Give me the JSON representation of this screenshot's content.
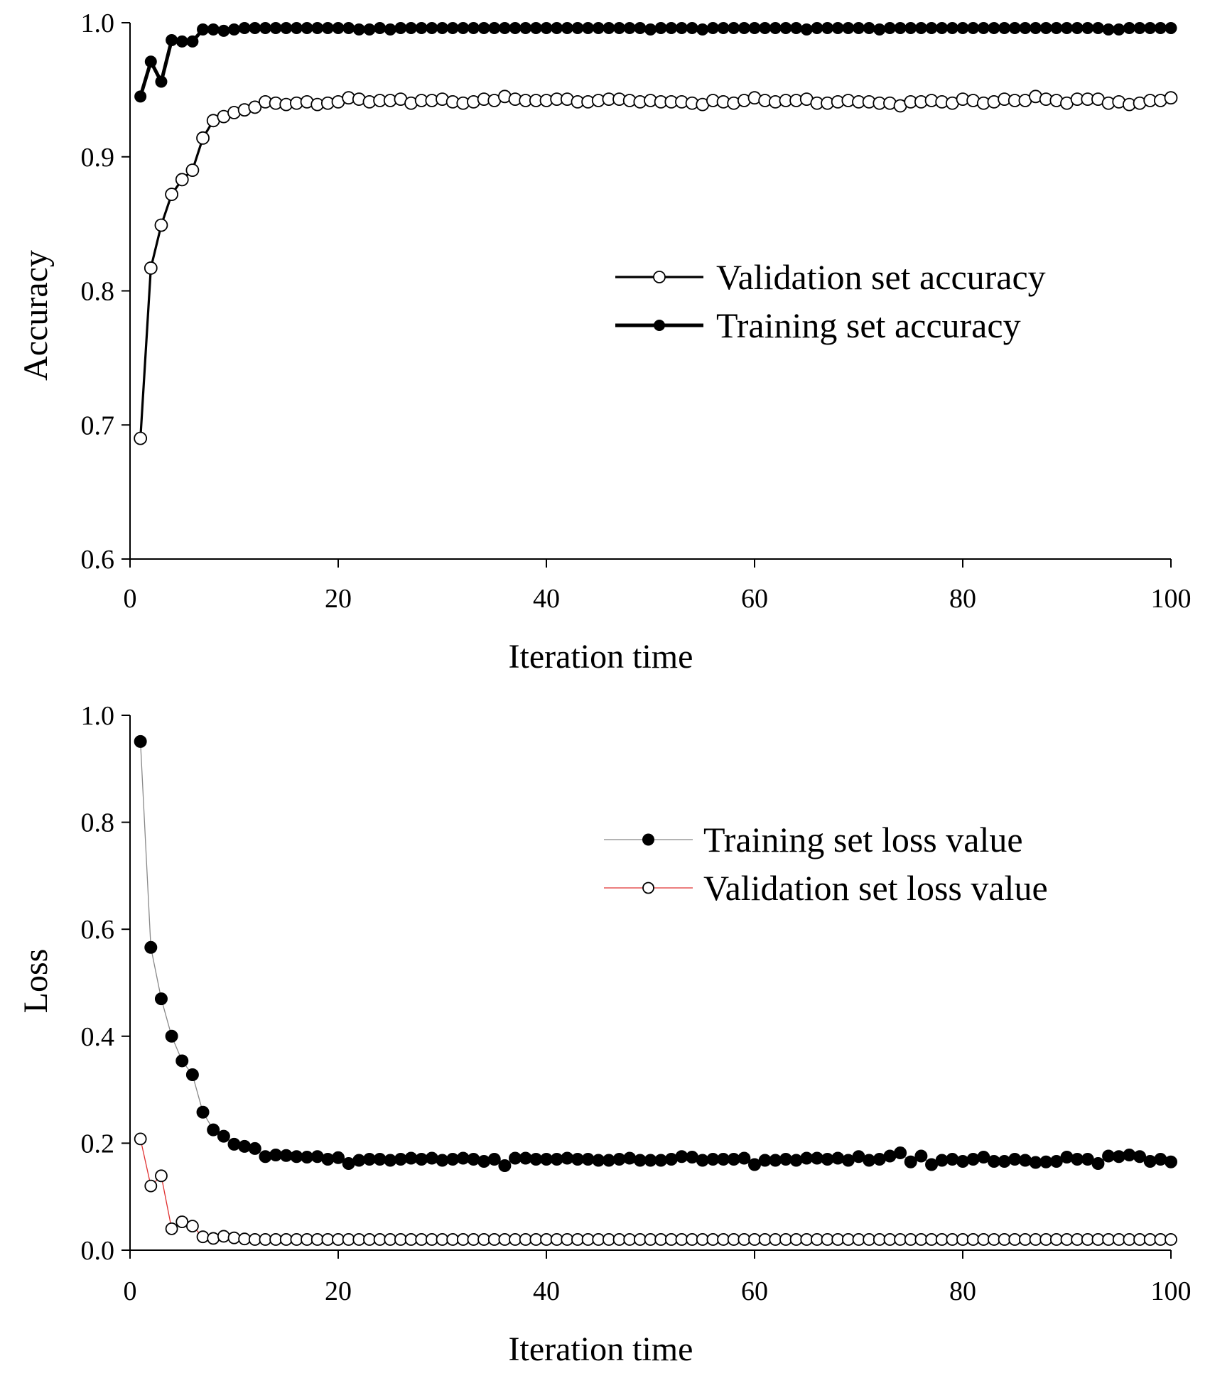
{
  "chart_data": [
    {
      "type": "line",
      "xlabel": "Iteration time",
      "ylabel": "Accuracy",
      "xlim": [
        0,
        100
      ],
      "ylim": [
        0.6,
        1.0
      ],
      "xticks": [
        "0",
        "20",
        "40",
        "60",
        "80",
        "100"
      ],
      "yticks": [
        "0.6",
        "0.7",
        "0.8",
        "0.9",
        "1.0"
      ],
      "legend_position": "center-right",
      "series": [
        {
          "name": "Validation set accuracy",
          "marker": "open-circle",
          "line_color": "#000000",
          "marker_color": "#ffffff",
          "x": [
            1,
            2,
            3,
            4,
            5,
            6,
            7,
            8,
            9,
            10,
            11,
            12,
            13,
            14,
            15,
            16,
            17,
            18,
            19,
            20,
            21,
            22,
            23,
            24,
            25,
            26,
            27,
            28,
            29,
            30,
            31,
            32,
            33,
            34,
            35,
            36,
            37,
            38,
            39,
            40,
            41,
            42,
            43,
            44,
            45,
            46,
            47,
            48,
            49,
            50,
            51,
            52,
            53,
            54,
            55,
            56,
            57,
            58,
            59,
            60,
            61,
            62,
            63,
            64,
            65,
            66,
            67,
            68,
            69,
            70,
            71,
            72,
            73,
            74,
            75,
            76,
            77,
            78,
            79,
            80,
            81,
            82,
            83,
            84,
            85,
            86,
            87,
            88,
            89,
            90,
            91,
            92,
            93,
            94,
            95,
            96,
            97,
            98,
            99,
            100
          ],
          "values": [
            0.69,
            0.817,
            0.849,
            0.872,
            0.883,
            0.89,
            0.914,
            0.927,
            0.93,
            0.933,
            0.935,
            0.937,
            0.941,
            0.94,
            0.939,
            0.94,
            0.941,
            0.939,
            0.94,
            0.941,
            0.944,
            0.943,
            0.941,
            0.942,
            0.942,
            0.943,
            0.94,
            0.942,
            0.942,
            0.943,
            0.941,
            0.94,
            0.941,
            0.943,
            0.942,
            0.945,
            0.943,
            0.942,
            0.942,
            0.942,
            0.943,
            0.943,
            0.941,
            0.941,
            0.942,
            0.943,
            0.943,
            0.942,
            0.941,
            0.942,
            0.941,
            0.941,
            0.941,
            0.94,
            0.939,
            0.942,
            0.941,
            0.94,
            0.942,
            0.944,
            0.942,
            0.941,
            0.942,
            0.942,
            0.943,
            0.94,
            0.94,
            0.941,
            0.942,
            0.941,
            0.941,
            0.94,
            0.94,
            0.938,
            0.941,
            0.941,
            0.942,
            0.941,
            0.94,
            0.943,
            0.942,
            0.94,
            0.941,
            0.943,
            0.942,
            0.942,
            0.945,
            0.943,
            0.942,
            0.94,
            0.943,
            0.943,
            0.943,
            0.94,
            0.941,
            0.939,
            0.94,
            0.942,
            0.942,
            0.944
          ]
        },
        {
          "name": "Training set accuracy",
          "marker": "filled-circle",
          "line_color": "#000000",
          "marker_color": "#000000",
          "x": [
            1,
            2,
            3,
            4,
            5,
            6,
            7,
            8,
            9,
            10,
            11,
            12,
            13,
            14,
            15,
            16,
            17,
            18,
            19,
            20,
            21,
            22,
            23,
            24,
            25,
            26,
            27,
            28,
            29,
            30,
            31,
            32,
            33,
            34,
            35,
            36,
            37,
            38,
            39,
            40,
            41,
            42,
            43,
            44,
            45,
            46,
            47,
            48,
            49,
            50,
            51,
            52,
            53,
            54,
            55,
            56,
            57,
            58,
            59,
            60,
            61,
            62,
            63,
            64,
            65,
            66,
            67,
            68,
            69,
            70,
            71,
            72,
            73,
            74,
            75,
            76,
            77,
            78,
            79,
            80,
            81,
            82,
            83,
            84,
            85,
            86,
            87,
            88,
            89,
            90,
            91,
            92,
            93,
            94,
            95,
            96,
            97,
            98,
            99,
            100
          ],
          "values": [
            0.945,
            0.971,
            0.956,
            0.987,
            0.986,
            0.986,
            0.995,
            0.995,
            0.994,
            0.995,
            0.996,
            0.996,
            0.996,
            0.996,
            0.996,
            0.996,
            0.996,
            0.996,
            0.996,
            0.996,
            0.996,
            0.995,
            0.995,
            0.996,
            0.995,
            0.996,
            0.996,
            0.996,
            0.996,
            0.996,
            0.996,
            0.996,
            0.996,
            0.996,
            0.996,
            0.996,
            0.996,
            0.996,
            0.996,
            0.996,
            0.996,
            0.996,
            0.996,
            0.996,
            0.996,
            0.996,
            0.996,
            0.996,
            0.996,
            0.995,
            0.996,
            0.996,
            0.996,
            0.996,
            0.995,
            0.996,
            0.996,
            0.996,
            0.996,
            0.996,
            0.996,
            0.996,
            0.996,
            0.996,
            0.995,
            0.996,
            0.996,
            0.996,
            0.996,
            0.996,
            0.996,
            0.995,
            0.996,
            0.996,
            0.996,
            0.996,
            0.996,
            0.996,
            0.996,
            0.996,
            0.996,
            0.996,
            0.996,
            0.996,
            0.996,
            0.996,
            0.996,
            0.996,
            0.996,
            0.996,
            0.996,
            0.996,
            0.996,
            0.995,
            0.995,
            0.996,
            0.996,
            0.996,
            0.996,
            0.996
          ]
        }
      ]
    },
    {
      "type": "line",
      "xlabel": "Iteration time",
      "ylabel": "Loss",
      "xlim": [
        0,
        100
      ],
      "ylim": [
        0.0,
        1.0
      ],
      "xticks": [
        "0",
        "20",
        "40",
        "60",
        "80",
        "100"
      ],
      "yticks": [
        "0.0",
        "0.2",
        "0.4",
        "0.6",
        "0.8",
        "1.0"
      ],
      "legend_position": "top-right",
      "series": [
        {
          "name": "Training set loss value",
          "marker": "filled-circle",
          "line_color": "#888888",
          "marker_color": "#000000",
          "x": [
            1,
            2,
            3,
            4,
            5,
            6,
            7,
            8,
            9,
            10,
            11,
            12,
            13,
            14,
            15,
            16,
            17,
            18,
            19,
            20,
            21,
            22,
            23,
            24,
            25,
            26,
            27,
            28,
            29,
            30,
            31,
            32,
            33,
            34,
            35,
            36,
            37,
            38,
            39,
            40,
            41,
            42,
            43,
            44,
            45,
            46,
            47,
            48,
            49,
            50,
            51,
            52,
            53,
            54,
            55,
            56,
            57,
            58,
            59,
            60,
            61,
            62,
            63,
            64,
            65,
            66,
            67,
            68,
            69,
            70,
            71,
            72,
            73,
            74,
            75,
            76,
            77,
            78,
            79,
            80,
            81,
            82,
            83,
            84,
            85,
            86,
            87,
            88,
            89,
            90,
            91,
            92,
            93,
            94,
            95,
            96,
            97,
            98,
            99,
            100
          ],
          "values": [
            0.951,
            0.566,
            0.47,
            0.4,
            0.354,
            0.328,
            0.258,
            0.225,
            0.213,
            0.198,
            0.194,
            0.19,
            0.175,
            0.178,
            0.177,
            0.175,
            0.174,
            0.175,
            0.17,
            0.173,
            0.162,
            0.168,
            0.17,
            0.17,
            0.168,
            0.17,
            0.172,
            0.17,
            0.172,
            0.168,
            0.17,
            0.172,
            0.17,
            0.166,
            0.17,
            0.158,
            0.172,
            0.172,
            0.17,
            0.17,
            0.17,
            0.172,
            0.17,
            0.17,
            0.168,
            0.168,
            0.17,
            0.172,
            0.168,
            0.168,
            0.168,
            0.17,
            0.175,
            0.174,
            0.168,
            0.17,
            0.17,
            0.17,
            0.172,
            0.16,
            0.168,
            0.168,
            0.17,
            0.168,
            0.172,
            0.172,
            0.17,
            0.172,
            0.168,
            0.175,
            0.168,
            0.17,
            0.176,
            0.182,
            0.165,
            0.176,
            0.16,
            0.168,
            0.17,
            0.166,
            0.17,
            0.174,
            0.166,
            0.166,
            0.17,
            0.168,
            0.164,
            0.165,
            0.166,
            0.174,
            0.17,
            0.17,
            0.162,
            0.176,
            0.175,
            0.178,
            0.175,
            0.166,
            0.17,
            0.165
          ]
        },
        {
          "name": "Validation set loss value",
          "marker": "open-circle",
          "line_color": "#e03030",
          "marker_color": "#ffffff",
          "x": [
            1,
            2,
            3,
            4,
            5,
            6,
            7,
            8,
            9,
            10,
            11,
            12,
            13,
            14,
            15,
            16,
            17,
            18,
            19,
            20,
            21,
            22,
            23,
            24,
            25,
            26,
            27,
            28,
            29,
            30,
            31,
            32,
            33,
            34,
            35,
            36,
            37,
            38,
            39,
            40,
            41,
            42,
            43,
            44,
            45,
            46,
            47,
            48,
            49,
            50,
            51,
            52,
            53,
            54,
            55,
            56,
            57,
            58,
            59,
            60,
            61,
            62,
            63,
            64,
            65,
            66,
            67,
            68,
            69,
            70,
            71,
            72,
            73,
            74,
            75,
            76,
            77,
            78,
            79,
            80,
            81,
            82,
            83,
            84,
            85,
            86,
            87,
            88,
            89,
            90,
            91,
            92,
            93,
            94,
            95,
            96,
            97,
            98,
            99,
            100
          ],
          "values": [
            0.208,
            0.12,
            0.139,
            0.04,
            0.053,
            0.045,
            0.025,
            0.022,
            0.026,
            0.023,
            0.021,
            0.02,
            0.02,
            0.02,
            0.02,
            0.02,
            0.02,
            0.02,
            0.02,
            0.02,
            0.02,
            0.02,
            0.02,
            0.02,
            0.02,
            0.02,
            0.02,
            0.02,
            0.02,
            0.02,
            0.02,
            0.02,
            0.02,
            0.02,
            0.02,
            0.02,
            0.02,
            0.02,
            0.02,
            0.02,
            0.02,
            0.02,
            0.02,
            0.02,
            0.02,
            0.02,
            0.02,
            0.02,
            0.02,
            0.02,
            0.02,
            0.02,
            0.02,
            0.02,
            0.02,
            0.02,
            0.02,
            0.02,
            0.02,
            0.02,
            0.02,
            0.02,
            0.02,
            0.02,
            0.02,
            0.02,
            0.02,
            0.02,
            0.02,
            0.02,
            0.02,
            0.02,
            0.02,
            0.02,
            0.02,
            0.02,
            0.02,
            0.02,
            0.02,
            0.02,
            0.02,
            0.02,
            0.02,
            0.02,
            0.02,
            0.02,
            0.02,
            0.02,
            0.02,
            0.02,
            0.02,
            0.02,
            0.02,
            0.02,
            0.02,
            0.02,
            0.02,
            0.02,
            0.02,
            0.02
          ]
        }
      ]
    }
  ]
}
